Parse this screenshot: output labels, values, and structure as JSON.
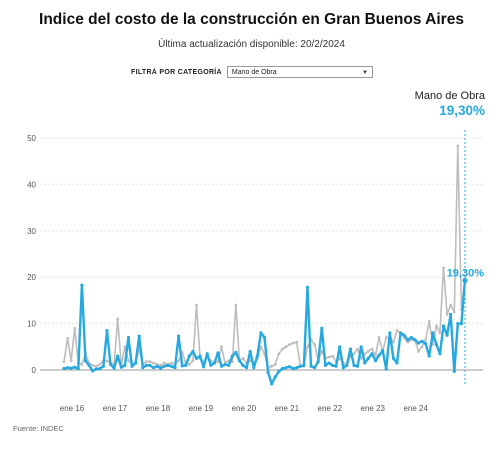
{
  "title": "Indice del costo de la construcción en Gran Buenos Aires",
  "subtitle": "Última actualización disponible: 20/2/2024",
  "filter": {
    "label": "FILTRÁ POR CATEGORÍA",
    "selected": "Mano de Obra"
  },
  "highlight": {
    "series_name": "Mano de Obra",
    "value_label": "19,30%"
  },
  "source": "Fuente: INDEC",
  "colors": {
    "highlight": "#27a9df",
    "background_series": "#bdbdbd",
    "grid": "#e6e6e6",
    "zero_line": "#999999"
  },
  "chart_data": {
    "type": "line",
    "title": "Indice del costo de la construcción en Gran Buenos Aires",
    "xlabel": "",
    "ylabel": "",
    "x_start": "ene 16",
    "x_tick_labels": [
      "ene 16",
      "ene 17",
      "ene 18",
      "ene 19",
      "ene 20",
      "ene 21",
      "ene 22",
      "ene 23",
      "ene 24"
    ],
    "y_ticks": [
      0,
      10,
      20,
      30,
      40,
      50
    ],
    "ylim": [
      -4,
      52
    ],
    "grid": true,
    "end_label": "19,30%",
    "series": [
      {
        "name": "Mano de Obra",
        "highlighted": true,
        "values": [
          0.3,
          0.5,
          0.4,
          0.6,
          0.3,
          18.3,
          2.0,
          1.0,
          -0.2,
          0.2,
          0.3,
          0.8,
          8.5,
          1.2,
          0.4,
          3.0,
          0.6,
          1.0,
          7.0,
          0.8,
          1.5,
          7.3,
          0.5,
          1.0,
          1.0,
          0.5,
          0.8,
          0.4,
          0.8,
          1.0,
          0.8,
          0.5,
          7.3,
          0.9,
          1.0,
          3.0,
          4.0,
          2.5,
          3.0,
          0.7,
          3.5,
          1.0,
          1.5,
          3.7,
          0.8,
          1.2,
          1.0,
          3.0,
          3.8,
          2.0,
          1.0,
          0.5,
          4.0,
          0.5,
          3.0,
          8.0,
          7.0,
          -0.5,
          -3.0,
          -1.5,
          -0.3,
          0.3,
          0.5,
          0.7,
          0.3,
          0.5,
          0.8,
          1.0,
          17.8,
          0.8,
          0.5,
          1.8,
          9.0,
          1.0,
          1.5,
          1.0,
          0.8,
          5.0,
          0.5,
          1.0,
          4.5,
          1.0,
          0.8,
          5.0,
          1.5,
          2.5,
          3.5,
          2.0,
          3.2,
          4.2,
          0.2,
          8.0,
          2.5,
          1.5,
          8.0,
          7.5,
          6.5,
          7.0,
          6.5,
          5.8,
          6.2,
          5.7,
          3.0,
          8.0,
          5.5,
          3.5,
          9.5,
          7.5,
          12.0,
          -0.3,
          10.0,
          10.0,
          19.3
        ]
      },
      {
        "name": "",
        "highlighted": false,
        "values": [
          1.8,
          6.8,
          2.0,
          9.0,
          1.5,
          1.2,
          3.5,
          1.5,
          1.0,
          0.8,
          1.2,
          2.0,
          2.0,
          1.5,
          1.2,
          11.0,
          1.0,
          5.0,
          2.0,
          1.2,
          1.5,
          4.5,
          1.2,
          1.8,
          1.8,
          1.5,
          1.2,
          1.0,
          1.5,
          1.2,
          1.5,
          1.2,
          2.0,
          3.8,
          1.5,
          1.2,
          2.0,
          14.0,
          2.5,
          1.5,
          3.0,
          2.0,
          1.5,
          1.8,
          5.0,
          1.5,
          2.0,
          1.8,
          14.0,
          2.0,
          2.5,
          1.5,
          2.0,
          1.5,
          2.5,
          5.0,
          3.5,
          0.5,
          0.8,
          1.2,
          3.5,
          4.5,
          5.0,
          5.5,
          5.8,
          6.0,
          1.0,
          0.8,
          5.0,
          6.5,
          5.5,
          2.0,
          4.0,
          2.5,
          2.8,
          3.0,
          1.8,
          2.5,
          1.5,
          1.0,
          3.0,
          3.5,
          4.5,
          2.5,
          3.5,
          4.0,
          4.5,
          3.2,
          7.0,
          4.0,
          7.0,
          7.0,
          6.0,
          8.5,
          8.0,
          7.0,
          6.0,
          6.5,
          6.5,
          4.0,
          5.0,
          6.5,
          10.5,
          5.5,
          9.5,
          8.0,
          22.0,
          12.0,
          14.0,
          12.5,
          48.3,
          13.0,
          20.0
        ]
      }
    ]
  }
}
